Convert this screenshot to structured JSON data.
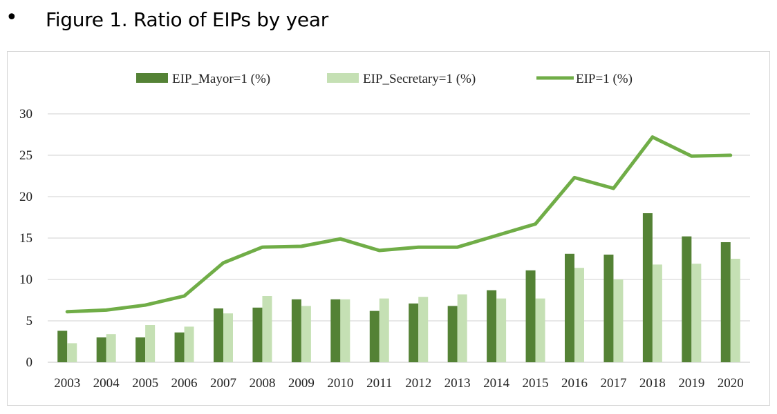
{
  "heading": {
    "bullet": "•",
    "title": "Figure 1. Ratio of EIPs by year"
  },
  "chart_data": {
    "type": "bar",
    "title": "",
    "xlabel": "",
    "ylabel": "",
    "ylim": [
      0,
      30
    ],
    "yticks": [
      0,
      5,
      10,
      15,
      20,
      25,
      30
    ],
    "grid": true,
    "legend_position": "top",
    "categories": [
      "2003",
      "2004",
      "2005",
      "2006",
      "2007",
      "2008",
      "2009",
      "2010",
      "2011",
      "2012",
      "2013",
      "2014",
      "2015",
      "2016",
      "2017",
      "2018",
      "2019",
      "2020"
    ],
    "series": [
      {
        "name": "EIP_Mayor=1 (%)",
        "kind": "bar",
        "color": "#548235",
        "values": [
          3.8,
          3.0,
          3.0,
          3.6,
          6.5,
          6.6,
          7.6,
          7.6,
          6.2,
          7.1,
          6.8,
          8.7,
          11.1,
          13.1,
          13.0,
          18.0,
          15.2,
          14.5
        ]
      },
      {
        "name": "EIP_Secretary=1 (%)",
        "kind": "bar",
        "color": "#c5e0b4",
        "values": [
          2.3,
          3.4,
          4.5,
          4.3,
          5.9,
          8.0,
          6.8,
          7.6,
          7.7,
          7.9,
          8.2,
          7.7,
          7.7,
          11.4,
          10.0,
          11.8,
          11.9,
          12.5
        ]
      },
      {
        "name": "EIP=1 (%)",
        "kind": "line",
        "color": "#70ad47",
        "values": [
          6.1,
          6.3,
          6.9,
          8.0,
          12.0,
          13.9,
          14.0,
          14.9,
          13.5,
          13.9,
          13.9,
          15.3,
          16.7,
          22.3,
          21.0,
          27.2,
          24.9,
          25.0
        ]
      }
    ]
  }
}
